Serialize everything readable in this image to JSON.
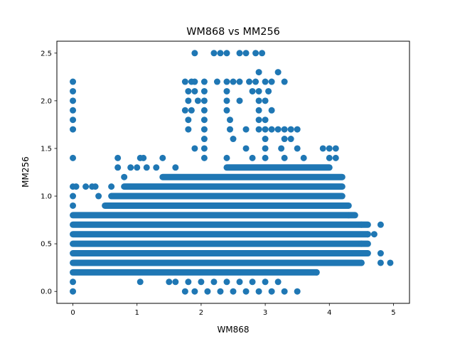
{
  "chart_data": {
    "type": "scatter",
    "title": "WM868 vs MM256",
    "xlabel": "WM868",
    "ylabel": "MM256",
    "xlim": [
      -0.25,
      5.25
    ],
    "ylim": [
      -0.125,
      2.625
    ],
    "xticks": [
      0,
      1,
      2,
      3,
      4,
      5
    ],
    "xtick_labels": [
      "0",
      "1",
      "2",
      "3",
      "4",
      "5"
    ],
    "yticks": [
      0.0,
      0.5,
      1.0,
      1.5,
      2.0,
      2.5
    ],
    "ytick_labels": [
      "0.0",
      "0.5",
      "1.0",
      "1.5",
      "2.0",
      "2.5"
    ],
    "grid": false,
    "marker_color": "#1f77b4",
    "bands": [
      {
        "y": 0.2,
        "x_min": 0.0,
        "x_max": 3.8
      },
      {
        "y": 0.3,
        "x_min": 0.0,
        "x_max": 4.5
      },
      {
        "y": 0.4,
        "x_min": 0.0,
        "x_max": 4.6
      },
      {
        "y": 0.5,
        "x_min": 0.0,
        "x_max": 4.6
      },
      {
        "y": 0.6,
        "x_min": 0.0,
        "x_max": 4.6
      },
      {
        "y": 0.7,
        "x_min": 0.0,
        "x_max": 4.6
      },
      {
        "y": 0.8,
        "x_min": 0.0,
        "x_max": 4.4
      },
      {
        "y": 0.9,
        "x_min": 0.5,
        "x_max": 4.3
      },
      {
        "y": 1.0,
        "x_min": 0.6,
        "x_max": 4.2
      },
      {
        "y": 1.1,
        "x_min": 0.8,
        "x_max": 4.2
      },
      {
        "y": 1.2,
        "x_min": 1.4,
        "x_max": 4.2
      },
      {
        "y": 1.3,
        "x_min": 2.4,
        "x_max": 4.0
      }
    ],
    "points": [
      {
        "x": 0.0,
        "y": 0.0
      },
      {
        "x": 0.0,
        "y": 0.1
      },
      {
        "x": 0.0,
        "y": 0.9
      },
      {
        "x": 0.0,
        "y": 1.0
      },
      {
        "x": 0.0,
        "y": 1.1
      },
      {
        "x": 0.0,
        "y": 1.4
      },
      {
        "x": 0.0,
        "y": 1.7
      },
      {
        "x": 0.0,
        "y": 1.8
      },
      {
        "x": 0.0,
        "y": 1.9
      },
      {
        "x": 0.0,
        "y": 2.0
      },
      {
        "x": 0.0,
        "y": 2.1
      },
      {
        "x": 0.0,
        "y": 2.2
      },
      {
        "x": 0.05,
        "y": 1.1
      },
      {
        "x": 0.2,
        "y": 1.1
      },
      {
        "x": 0.3,
        "y": 1.1
      },
      {
        "x": 0.35,
        "y": 1.1
      },
      {
        "x": 0.4,
        "y": 1.0
      },
      {
        "x": 0.6,
        "y": 1.1
      },
      {
        "x": 0.7,
        "y": 1.4
      },
      {
        "x": 0.7,
        "y": 1.3
      },
      {
        "x": 0.8,
        "y": 1.2
      },
      {
        "x": 0.9,
        "y": 1.3
      },
      {
        "x": 1.0,
        "y": 1.3
      },
      {
        "x": 1.05,
        "y": 1.4
      },
      {
        "x": 1.1,
        "y": 1.4
      },
      {
        "x": 1.15,
        "y": 1.3
      },
      {
        "x": 1.3,
        "y": 1.3
      },
      {
        "x": 1.4,
        "y": 1.4
      },
      {
        "x": 1.6,
        "y": 1.3
      },
      {
        "x": 1.05,
        "y": 0.1
      },
      {
        "x": 1.5,
        "y": 0.1
      },
      {
        "x": 1.6,
        "y": 0.1
      },
      {
        "x": 1.8,
        "y": 0.1
      },
      {
        "x": 2.0,
        "y": 0.1
      },
      {
        "x": 2.2,
        "y": 0.1
      },
      {
        "x": 2.4,
        "y": 0.1
      },
      {
        "x": 2.6,
        "y": 0.1
      },
      {
        "x": 2.8,
        "y": 0.1
      },
      {
        "x": 3.0,
        "y": 0.1
      },
      {
        "x": 1.9,
        "y": 0.0
      },
      {
        "x": 2.1,
        "y": 0.0
      },
      {
        "x": 2.3,
        "y": 0.0
      },
      {
        "x": 2.5,
        "y": 0.0
      },
      {
        "x": 2.7,
        "y": 0.0
      },
      {
        "x": 2.9,
        "y": 0.0
      },
      {
        "x": 3.1,
        "y": 0.0
      },
      {
        "x": 3.3,
        "y": 0.0
      },
      {
        "x": 3.5,
        "y": 0.0
      },
      {
        "x": 1.75,
        "y": 0.0
      },
      {
        "x": 3.2,
        "y": 0.1
      },
      {
        "x": 1.75,
        "y": 2.2
      },
      {
        "x": 1.85,
        "y": 2.2
      },
      {
        "x": 1.9,
        "y": 2.2
      },
      {
        "x": 2.05,
        "y": 2.2
      },
      {
        "x": 1.8,
        "y": 2.1
      },
      {
        "x": 1.9,
        "y": 2.1
      },
      {
        "x": 2.05,
        "y": 2.1
      },
      {
        "x": 1.8,
        "y": 2.0
      },
      {
        "x": 1.95,
        "y": 2.0
      },
      {
        "x": 2.05,
        "y": 2.0
      },
      {
        "x": 1.75,
        "y": 1.9
      },
      {
        "x": 1.85,
        "y": 1.9
      },
      {
        "x": 2.05,
        "y": 1.9
      },
      {
        "x": 1.8,
        "y": 1.8
      },
      {
        "x": 2.05,
        "y": 1.8
      },
      {
        "x": 1.8,
        "y": 1.7
      },
      {
        "x": 2.05,
        "y": 1.7
      },
      {
        "x": 2.05,
        "y": 1.6
      },
      {
        "x": 1.9,
        "y": 1.5
      },
      {
        "x": 2.05,
        "y": 1.5
      },
      {
        "x": 2.05,
        "y": 1.4
      },
      {
        "x": 1.9,
        "y": 2.5
      },
      {
        "x": 2.2,
        "y": 2.5
      },
      {
        "x": 2.3,
        "y": 2.5
      },
      {
        "x": 2.4,
        "y": 2.5
      },
      {
        "x": 2.6,
        "y": 2.5
      },
      {
        "x": 2.7,
        "y": 2.5
      },
      {
        "x": 2.85,
        "y": 2.5
      },
      {
        "x": 2.95,
        "y": 2.5
      },
      {
        "x": 2.25,
        "y": 2.2
      },
      {
        "x": 2.4,
        "y": 2.2
      },
      {
        "x": 2.5,
        "y": 2.2
      },
      {
        "x": 2.6,
        "y": 2.2
      },
      {
        "x": 2.75,
        "y": 2.2
      },
      {
        "x": 2.85,
        "y": 2.2
      },
      {
        "x": 3.0,
        "y": 2.2
      },
      {
        "x": 3.1,
        "y": 2.2
      },
      {
        "x": 3.3,
        "y": 2.2
      },
      {
        "x": 2.4,
        "y": 2.1
      },
      {
        "x": 2.8,
        "y": 2.1
      },
      {
        "x": 2.9,
        "y": 2.1
      },
      {
        "x": 3.05,
        "y": 2.1
      },
      {
        "x": 2.4,
        "y": 2.0
      },
      {
        "x": 2.6,
        "y": 2.0
      },
      {
        "x": 2.9,
        "y": 2.0
      },
      {
        "x": 3.0,
        "y": 2.0
      },
      {
        "x": 2.4,
        "y": 1.9
      },
      {
        "x": 2.9,
        "y": 1.9
      },
      {
        "x": 3.1,
        "y": 1.9
      },
      {
        "x": 2.45,
        "y": 1.8
      },
      {
        "x": 2.9,
        "y": 1.8
      },
      {
        "x": 3.0,
        "y": 1.8
      },
      {
        "x": 2.9,
        "y": 2.3
      },
      {
        "x": 3.2,
        "y": 2.3
      },
      {
        "x": 2.45,
        "y": 1.7
      },
      {
        "x": 2.7,
        "y": 1.7
      },
      {
        "x": 2.9,
        "y": 1.7
      },
      {
        "x": 3.0,
        "y": 1.7
      },
      {
        "x": 3.1,
        "y": 1.7
      },
      {
        "x": 3.2,
        "y": 1.7
      },
      {
        "x": 3.3,
        "y": 1.7
      },
      {
        "x": 3.4,
        "y": 1.7
      },
      {
        "x": 3.5,
        "y": 1.7
      },
      {
        "x": 2.5,
        "y": 1.6
      },
      {
        "x": 3.0,
        "y": 1.6
      },
      {
        "x": 3.3,
        "y": 1.6
      },
      {
        "x": 3.4,
        "y": 1.6
      },
      {
        "x": 2.7,
        "y": 1.5
      },
      {
        "x": 3.0,
        "y": 1.5
      },
      {
        "x": 3.25,
        "y": 1.5
      },
      {
        "x": 3.5,
        "y": 1.5
      },
      {
        "x": 2.4,
        "y": 1.4
      },
      {
        "x": 2.8,
        "y": 1.4
      },
      {
        "x": 3.0,
        "y": 1.4
      },
      {
        "x": 3.3,
        "y": 1.4
      },
      {
        "x": 3.6,
        "y": 1.4
      },
      {
        "x": 4.0,
        "y": 1.4
      },
      {
        "x": 4.1,
        "y": 1.4
      },
      {
        "x": 3.9,
        "y": 1.5
      },
      {
        "x": 4.0,
        "y": 1.5
      },
      {
        "x": 4.1,
        "y": 1.5
      },
      {
        "x": 4.3,
        "y": 0.8
      },
      {
        "x": 4.5,
        "y": 0.7
      },
      {
        "x": 4.6,
        "y": 0.6
      },
      {
        "x": 4.7,
        "y": 0.6
      },
      {
        "x": 4.5,
        "y": 0.5
      },
      {
        "x": 4.8,
        "y": 0.4
      },
      {
        "x": 4.5,
        "y": 0.3
      },
      {
        "x": 4.8,
        "y": 0.3
      },
      {
        "x": 4.95,
        "y": 0.3
      },
      {
        "x": 4.8,
        "y": 0.7
      },
      {
        "x": 4.4,
        "y": 0.4
      },
      {
        "x": 3.8,
        "y": 0.2
      }
    ]
  }
}
